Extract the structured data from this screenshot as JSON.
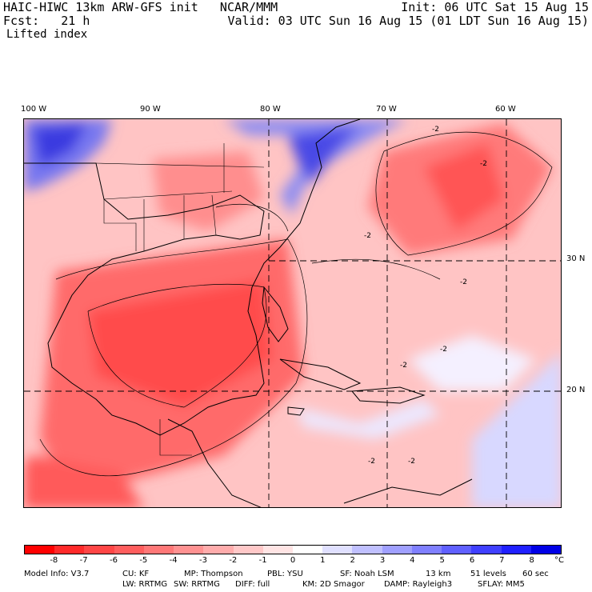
{
  "header": {
    "model_title": "HAIC-HIWC 13km ARW-GFS init   NCAR/MMM",
    "forecast": "Fcst:   21 h",
    "field": "Lifted index",
    "init": "Init: 06 UTC Sat 15 Aug 15",
    "valid": "Valid: 03 UTC Sun 16 Aug 15 (01 LDT Sun 16 Aug 15)"
  },
  "map": {
    "lon_labels": [
      "100 W",
      "90 W",
      "80 W",
      "70 W",
      "60 W"
    ],
    "lat_labels": [
      "30 N",
      "20 N"
    ],
    "contour_label": "-2"
  },
  "colorbar": {
    "ticks": [
      "-8",
      "-7",
      "-6",
      "-5",
      "-4",
      "-3",
      "-2",
      "-1",
      "0",
      "1",
      "2",
      "3",
      "4",
      "5",
      "6",
      "7",
      "8"
    ],
    "unit": "°C",
    "colors": [
      "#ff0000",
      "#ff2a2a",
      "#ff4646",
      "#ff5e5e",
      "#ff7878",
      "#ff9292",
      "#ffacac",
      "#ffc8c8",
      "#ffe4e4",
      "#ffffff",
      "#e0e0ff",
      "#c0c0ff",
      "#a0a0ff",
      "#8080ff",
      "#6060ff",
      "#4040ff",
      "#2020ff",
      "#0000e6"
    ]
  },
  "footer": {
    "line1": [
      "Model Info: V3.7",
      "CU: KF",
      "MP: Thompson",
      "PBL: YSU",
      "SF: Noah LSM",
      "13 km",
      "51 levels",
      "60 sec"
    ],
    "line2": [
      "LW: RRTMG",
      "SW: RRTMG",
      "DIFF: full",
      "KM: 2D Smagor",
      "DAMP: Rayleigh3",
      "SFLAY: MM5"
    ]
  }
}
